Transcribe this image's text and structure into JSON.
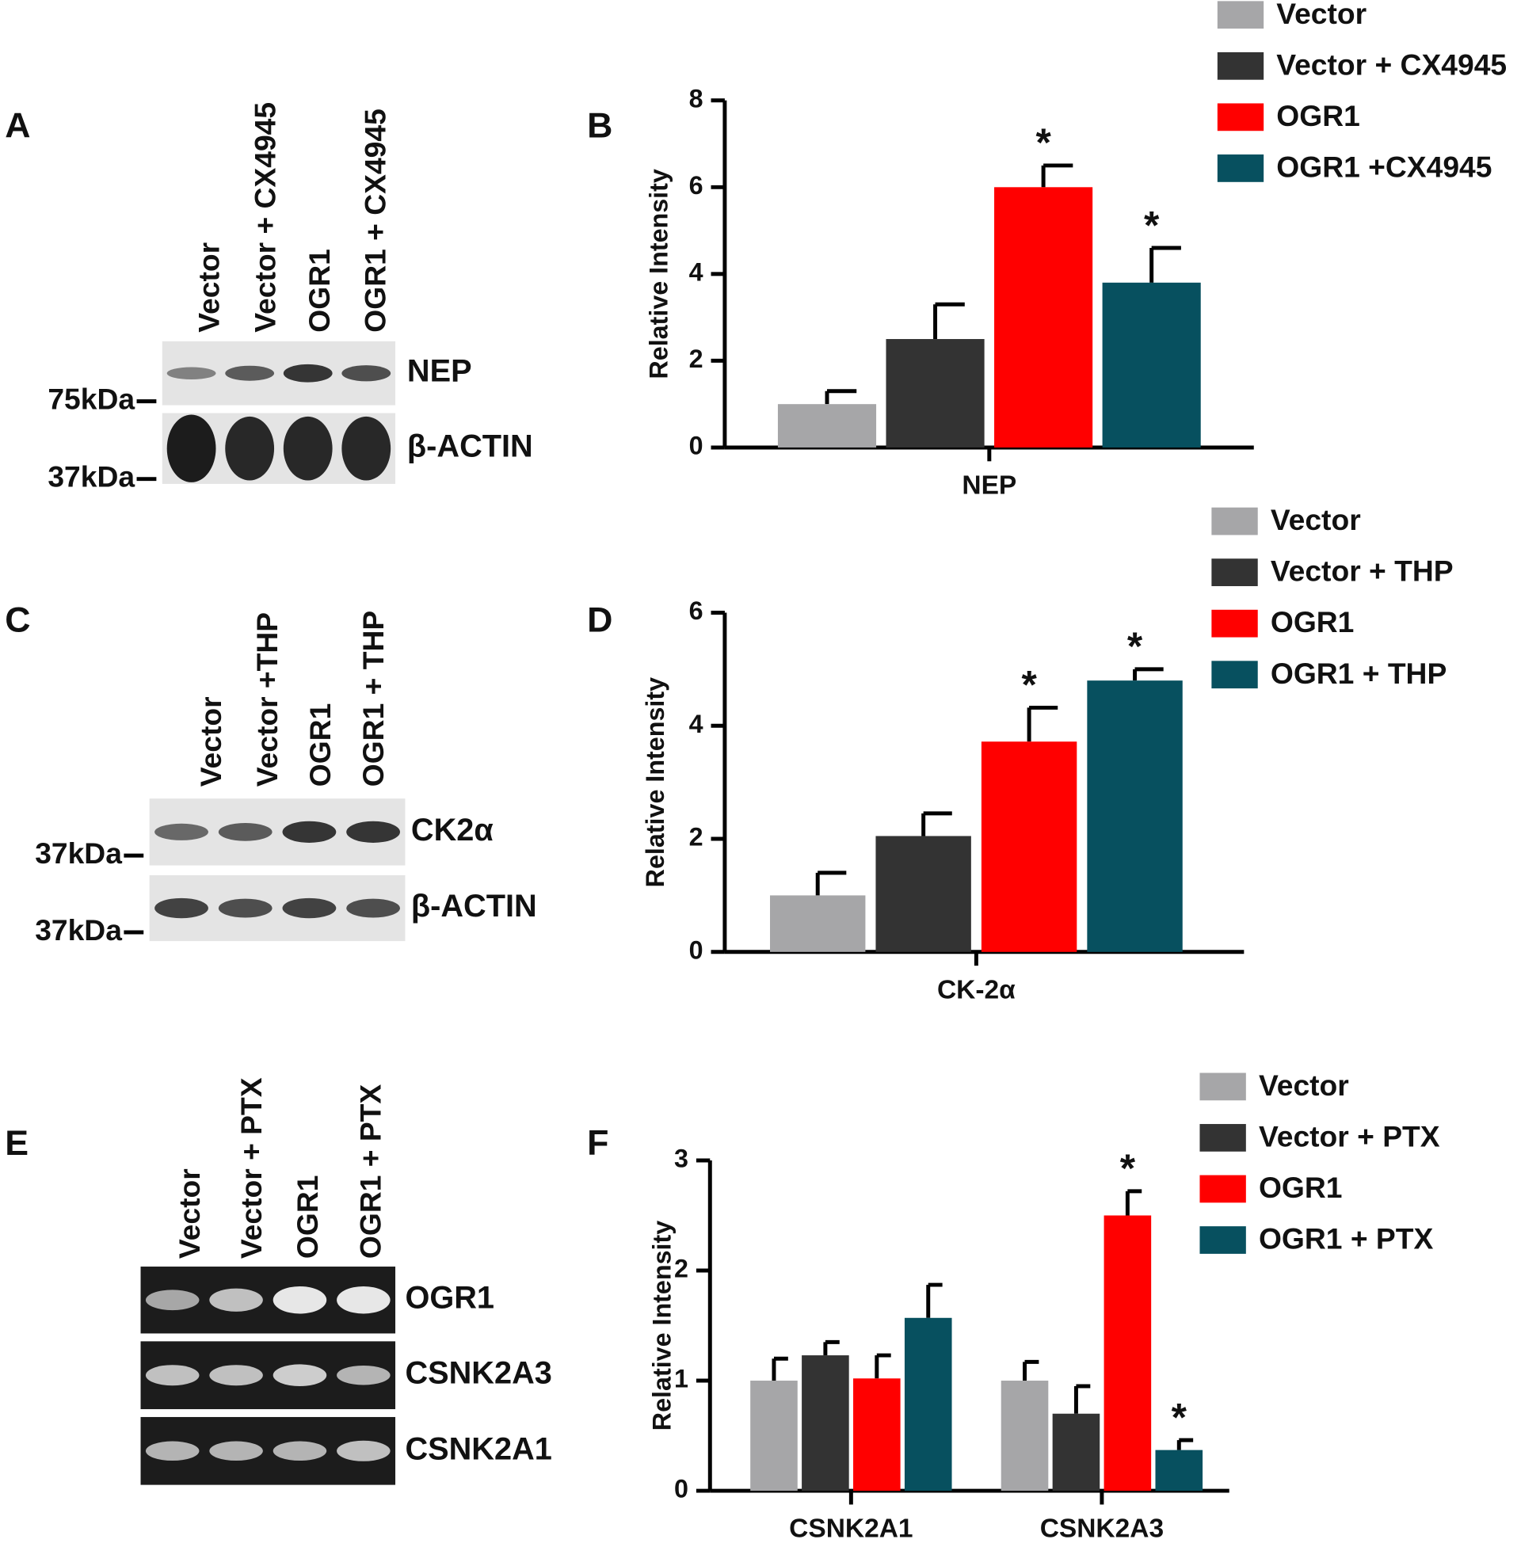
{
  "chart_data": [
    {
      "type": "bar",
      "panel": "B",
      "ylabel": "Relative Intensity",
      "categories": [
        "NEP"
      ],
      "ylim": [
        0,
        8
      ],
      "yticks": [
        0,
        2,
        4,
        6,
        8
      ],
      "series": [
        {
          "name": "Vector",
          "color": "#a6a6a8",
          "values": [
            1.0
          ],
          "errors": [
            0.3
          ],
          "significance": [
            null
          ]
        },
        {
          "name": "Vector + CX4945",
          "color": "#333333",
          "values": [
            2.5
          ],
          "errors": [
            0.8
          ],
          "significance": [
            null
          ]
        },
        {
          "name": "OGR1",
          "color": "#ff0000",
          "values": [
            6.0
          ],
          "errors": [
            0.5
          ],
          "significance": [
            "*"
          ]
        },
        {
          "name": "OGR1 +CX4945",
          "color": "#07505f",
          "values": [
            3.8
          ],
          "errors": [
            0.8
          ],
          "significance": [
            "*"
          ]
        }
      ]
    },
    {
      "type": "bar",
      "panel": "D",
      "ylabel": "Relative Intensity",
      "categories": [
        "CK-2α"
      ],
      "ylim": [
        0,
        6
      ],
      "yticks": [
        0,
        2,
        4,
        6
      ],
      "series": [
        {
          "name": "Vector",
          "color": "#a6a6a8",
          "values": [
            1.0
          ],
          "errors": [
            0.4
          ],
          "significance": [
            null
          ]
        },
        {
          "name": "Vector + THP",
          "color": "#333333",
          "values": [
            2.05
          ],
          "errors": [
            0.4
          ],
          "significance": [
            null
          ]
        },
        {
          "name": "OGR1",
          "color": "#ff0000",
          "values": [
            3.72
          ],
          "errors": [
            0.6
          ],
          "significance": [
            "*"
          ]
        },
        {
          "name": "OGR1 + THP",
          "color": "#07505f",
          "values": [
            4.8
          ],
          "errors": [
            0.2
          ],
          "significance": [
            "*"
          ]
        }
      ]
    },
    {
      "type": "bar",
      "panel": "F",
      "ylabel": "Relative Intensity",
      "categories": [
        "CSNK2A1",
        "CSNK2A3"
      ],
      "ylim": [
        0,
        3
      ],
      "yticks": [
        0,
        1,
        2,
        3
      ],
      "series": [
        {
          "name": "Vector",
          "color": "#a6a6a8",
          "values": [
            1.0,
            1.0
          ],
          "errors": [
            0.2,
            0.17
          ],
          "significance": [
            null,
            null
          ]
        },
        {
          "name": "Vector + PTX",
          "color": "#333333",
          "values": [
            1.23,
            0.7
          ],
          "errors": [
            0.12,
            0.25
          ],
          "significance": [
            null,
            null
          ]
        },
        {
          "name": "OGR1",
          "color": "#ff0000",
          "values": [
            1.02,
            2.5
          ],
          "errors": [
            0.21,
            0.22
          ],
          "significance": [
            null,
            "*"
          ]
        },
        {
          "name": "OGR1 + PTX",
          "color": "#07505f",
          "values": [
            1.57,
            0.37
          ],
          "errors": [
            0.3,
            0.09
          ],
          "significance": [
            null,
            "*"
          ]
        }
      ]
    }
  ],
  "blots": [
    {
      "panel": "A",
      "lanes": [
        "Vector",
        "Vector + CX4945",
        "OGR1",
        "OGR1 + CX4945"
      ],
      "rows": [
        {
          "label": "NEP",
          "marker": "75kDa"
        },
        {
          "label": "β-ACTIN",
          "marker": "37kDa"
        }
      ]
    },
    {
      "panel": "C",
      "lanes": [
        "Vector",
        "Vector +THP",
        "OGR1",
        "OGR1 + THP"
      ],
      "rows": [
        {
          "label": "CK2α",
          "marker": "37kDa"
        },
        {
          "label": "β-ACTIN",
          "marker": "37kDa"
        }
      ]
    },
    {
      "panel": "E",
      "lanes": [
        "Vector",
        "Vector + PTX",
        "OGR1",
        "OGR1 + PTX"
      ],
      "rows": [
        {
          "label": "OGR1"
        },
        {
          "label": "CSNK2A3"
        },
        {
          "label": "CSNK2A1"
        }
      ]
    }
  ]
}
